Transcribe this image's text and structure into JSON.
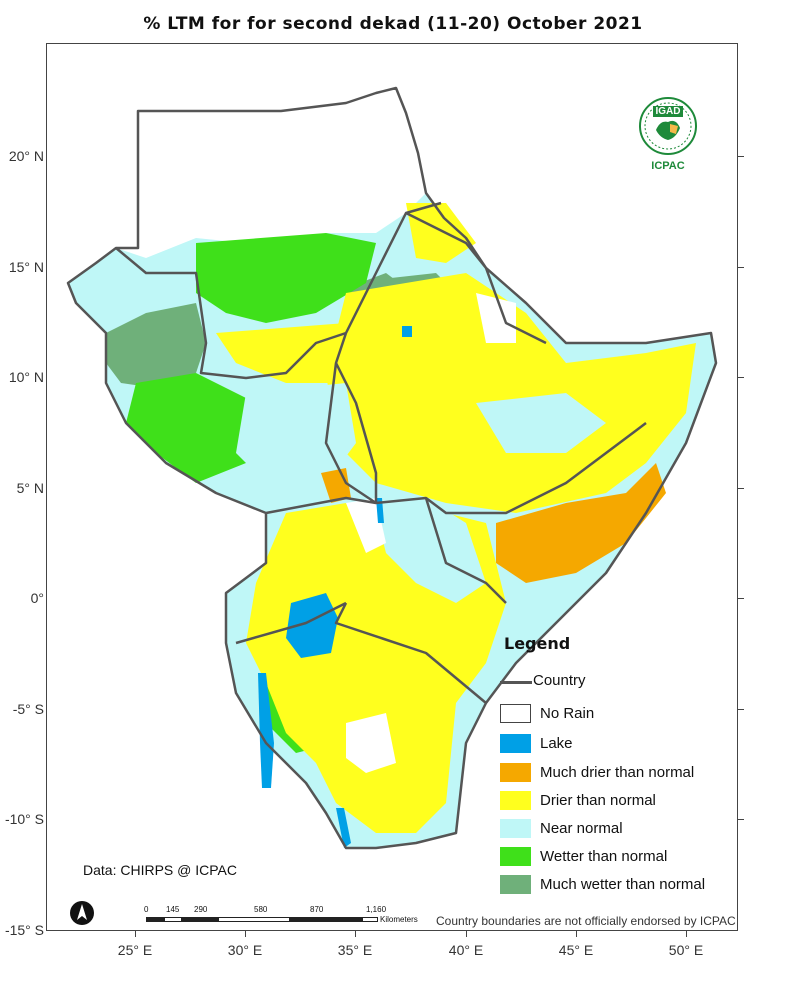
{
  "title": "% LTM for  for second dekad (11-20) October 2021",
  "axes": {
    "lat_labels": [
      "20° N",
      "15° N",
      "10° N",
      "5° N",
      "0°",
      "-5° S",
      "-10° S",
      "-15° S"
    ],
    "lon_labels": [
      "25° E",
      "30° E",
      "35° E",
      "40° E",
      "45° E",
      "50° E"
    ]
  },
  "logo": {
    "top_text": "IGAD",
    "bottom_text": "ICPAC"
  },
  "legend": {
    "title": "Legend",
    "country_label": "Country",
    "items": [
      {
        "label": "No Rain",
        "color": "#ffffff"
      },
      {
        "label": "Lake",
        "color": "#00a0e6"
      },
      {
        "label": "Much drier than normal",
        "color": "#f5a800"
      },
      {
        "label": "Drier than normal",
        "color": "#ffff1e"
      },
      {
        "label": "Near normal",
        "color": "#bff7f7"
      },
      {
        "label": "Wetter than normal",
        "color": "#3fe01a"
      },
      {
        "label": "Much wetter than normal",
        "color": "#6fb07a"
      }
    ]
  },
  "credit": "Data: CHIRPS @ ICPAC",
  "scale_bar": {
    "ticks": [
      "0",
      "145",
      "290",
      "580",
      "870",
      "1,160"
    ],
    "unit": "Kilometers"
  },
  "disclaimer": "Country boundaries are not officially endorsed by ICPAC",
  "colors": {
    "border": "#555555"
  }
}
